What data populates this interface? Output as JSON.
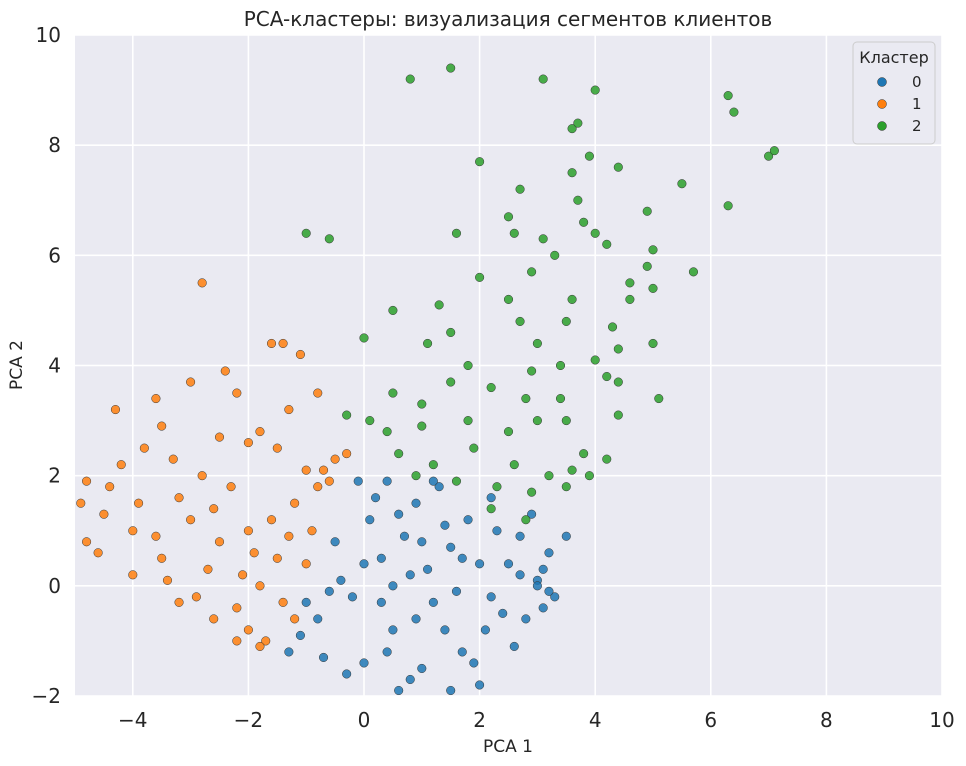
{
  "chart_data": {
    "type": "scatter",
    "title": "PCA-кластеры: визуализация сегментов клиентов",
    "xlabel": "PCA 1",
    "ylabel": "PCA 2",
    "xlim": [
      -5,
      10
    ],
    "ylim": [
      -2,
      10
    ],
    "xticks": [
      -4,
      -2,
      0,
      2,
      4,
      6,
      8,
      10
    ],
    "yticks": [
      -2,
      0,
      2,
      4,
      6,
      8,
      10
    ],
    "xtick_labels": [
      "−4",
      "−2",
      "0",
      "2",
      "4",
      "6",
      "8",
      "10"
    ],
    "ytick_labels": [
      "−2",
      "0",
      "2",
      "4",
      "6",
      "8",
      "10"
    ],
    "grid": true,
    "background": "#eaeaf2",
    "grid_color": "#ffffff",
    "legend": {
      "title": "Кластер",
      "position": "top-right",
      "entries": [
        "0",
        "1",
        "2"
      ]
    },
    "series": [
      {
        "name": "0",
        "color": "#1f77b4",
        "note": "dense cloud of several thousand points",
        "points": [
          [
            0.3,
            0.5
          ],
          [
            0.8,
            0.2
          ],
          [
            1.2,
            -0.3
          ],
          [
            0.5,
            -0.8
          ],
          [
            1.5,
            0.7
          ],
          [
            0.1,
            1.2
          ],
          [
            2.0,
            0.4
          ],
          [
            2.4,
            -0.5
          ],
          [
            0.9,
            1.5
          ],
          [
            -0.4,
            0.1
          ],
          [
            -0.8,
            -0.6
          ],
          [
            1.7,
            -1.2
          ],
          [
            2.7,
            0.9
          ],
          [
            3.0,
            0.1
          ],
          [
            1.0,
            -1.5
          ],
          [
            0.0,
            -1.4
          ],
          [
            -0.5,
            0.8
          ],
          [
            0.4,
            1.9
          ],
          [
            1.3,
            1.8
          ],
          [
            2.2,
            1.6
          ],
          [
            3.2,
            0.6
          ],
          [
            3.1,
            -0.4
          ],
          [
            2.6,
            -1.1
          ],
          [
            1.9,
            -1.4
          ],
          [
            0.6,
            -1.9
          ],
          [
            -1.1,
            -0.9
          ],
          [
            -1.3,
            -1.2
          ],
          [
            -0.2,
            -0.2
          ],
          [
            0.7,
            0.9
          ],
          [
            1.1,
            0.3
          ],
          [
            1.6,
            -0.1
          ],
          [
            2.1,
            -0.8
          ],
          [
            2.9,
            1.3
          ],
          [
            3.3,
            -0.2
          ],
          [
            0.2,
            1.6
          ],
          [
            -0.1,
            1.9
          ],
          [
            1.4,
            1.1
          ],
          [
            0.5,
            0.0
          ],
          [
            1.8,
            1.2
          ],
          [
            2.5,
            0.4
          ],
          [
            3.0,
            -0.0
          ],
          [
            3.2,
            -0.1
          ],
          [
            2.0,
            -1.8
          ],
          [
            1.5,
            -1.9
          ],
          [
            0.8,
            -1.7
          ],
          [
            -0.3,
            -1.6
          ],
          [
            -0.7,
            -1.3
          ],
          [
            -1.0,
            -0.3
          ],
          [
            3.5,
            0.9
          ],
          [
            3.1,
            0.3
          ],
          [
            2.8,
            -0.6
          ],
          [
            1.2,
            1.9
          ],
          [
            0.9,
            -0.6
          ],
          [
            0.3,
            -0.3
          ],
          [
            1.7,
            0.5
          ],
          [
            2.3,
            1.0
          ],
          [
            -0.6,
            -0.1
          ],
          [
            0.0,
            0.4
          ],
          [
            0.6,
            1.3
          ],
          [
            1.0,
            0.8
          ],
          [
            1.4,
            -0.8
          ],
          [
            2.2,
            -0.2
          ],
          [
            2.7,
            0.2
          ],
          [
            0.4,
            -1.2
          ]
        ]
      },
      {
        "name": "1",
        "color": "#ff7f0e",
        "note": "dense cloud of points",
        "points": [
          [
            -2.0,
            1.0
          ],
          [
            -1.5,
            0.5
          ],
          [
            -2.5,
            0.8
          ],
          [
            -3.0,
            1.2
          ],
          [
            -1.2,
            1.5
          ],
          [
            -0.8,
            1.8
          ],
          [
            -1.8,
            0.0
          ],
          [
            -2.2,
            -0.4
          ],
          [
            -3.5,
            0.5
          ],
          [
            -4.0,
            1.0
          ],
          [
            -4.5,
            1.3
          ],
          [
            -4.8,
            1.9
          ],
          [
            -3.2,
            1.6
          ],
          [
            -2.8,
            2.0
          ],
          [
            -1.0,
            2.1
          ],
          [
            -0.5,
            2.3
          ],
          [
            -1.4,
            -0.3
          ],
          [
            -2.0,
            -0.8
          ],
          [
            -1.7,
            -1.0
          ],
          [
            -1.2,
            -0.6
          ],
          [
            -3.8,
            2.5
          ],
          [
            -3.5,
            2.9
          ],
          [
            -2.4,
            3.9
          ],
          [
            -2.2,
            3.5
          ],
          [
            -1.6,
            4.4
          ],
          [
            -1.4,
            4.4
          ],
          [
            -1.1,
            4.2
          ],
          [
            -2.8,
            5.5
          ],
          [
            -3.6,
            3.4
          ],
          [
            -4.3,
            3.2
          ],
          [
            -3.0,
            3.7
          ],
          [
            -2.0,
            2.6
          ],
          [
            -0.8,
            3.5
          ],
          [
            -1.8,
            2.8
          ],
          [
            -4.0,
            0.2
          ],
          [
            -3.2,
            -0.3
          ],
          [
            -2.6,
            -0.6
          ],
          [
            -2.2,
            -1.0
          ],
          [
            -1.8,
            -1.1
          ],
          [
            -4.8,
            0.8
          ],
          [
            -4.9,
            1.5
          ],
          [
            -0.3,
            2.4
          ],
          [
            -0.7,
            2.1
          ],
          [
            -2.7,
            0.3
          ],
          [
            -3.9,
            1.5
          ],
          [
            -1.3,
            0.9
          ],
          [
            -2.3,
            1.8
          ],
          [
            -1.6,
            1.2
          ],
          [
            -0.6,
            1.9
          ],
          [
            -3.4,
            0.1
          ],
          [
            -2.9,
            -0.2
          ],
          [
            -1.9,
            0.6
          ],
          [
            -4.2,
            2.2
          ],
          [
            -3.3,
            2.3
          ],
          [
            -2.5,
            2.7
          ],
          [
            -1.3,
            3.2
          ],
          [
            -4.6,
            0.6
          ],
          [
            -1.0,
            0.4
          ],
          [
            -2.1,
            0.2
          ],
          [
            -3.6,
            0.9
          ],
          [
            -4.4,
            1.8
          ],
          [
            -1.5,
            2.5
          ],
          [
            -0.9,
            1.0
          ],
          [
            -2.6,
            1.4
          ]
        ]
      },
      {
        "name": "2",
        "color": "#2ca02c",
        "note": "sparser cloud of points",
        "points": [
          [
            0.8,
            9.2
          ],
          [
            1.5,
            9.4
          ],
          [
            3.1,
            9.2
          ],
          [
            4.0,
            9.0
          ],
          [
            6.3,
            8.9
          ],
          [
            6.4,
            8.6
          ],
          [
            7.0,
            7.8
          ],
          [
            7.1,
            7.9
          ],
          [
            3.6,
            8.3
          ],
          [
            3.7,
            8.4
          ],
          [
            3.9,
            7.8
          ],
          [
            2.0,
            7.7
          ],
          [
            4.4,
            7.6
          ],
          [
            3.6,
            7.5
          ],
          [
            5.5,
            7.3
          ],
          [
            2.7,
            7.2
          ],
          [
            3.7,
            7.0
          ],
          [
            6.3,
            6.9
          ],
          [
            4.9,
            6.8
          ],
          [
            3.8,
            6.6
          ],
          [
            2.5,
            6.7
          ],
          [
            1.6,
            6.4
          ],
          [
            -1.0,
            6.4
          ],
          [
            -0.6,
            6.3
          ],
          [
            2.6,
            6.4
          ],
          [
            3.1,
            6.3
          ],
          [
            4.0,
            6.4
          ],
          [
            4.2,
            6.2
          ],
          [
            5.0,
            6.1
          ],
          [
            3.3,
            6.0
          ],
          [
            5.7,
            5.7
          ],
          [
            4.6,
            5.5
          ],
          [
            4.9,
            5.8
          ],
          [
            2.9,
            5.7
          ],
          [
            3.6,
            5.2
          ],
          [
            5.0,
            5.4
          ],
          [
            2.0,
            5.6
          ],
          [
            2.5,
            5.2
          ],
          [
            0.5,
            5.0
          ],
          [
            1.3,
            5.1
          ],
          [
            4.6,
            5.2
          ],
          [
            2.7,
            4.8
          ],
          [
            3.5,
            4.8
          ],
          [
            4.3,
            4.7
          ],
          [
            1.5,
            4.6
          ],
          [
            3.0,
            4.4
          ],
          [
            4.4,
            4.3
          ],
          [
            1.1,
            4.4
          ],
          [
            5.0,
            4.4
          ],
          [
            0.0,
            4.5
          ],
          [
            1.8,
            4.0
          ],
          [
            3.4,
            4.0
          ],
          [
            4.0,
            4.1
          ],
          [
            2.9,
            3.9
          ],
          [
            4.2,
            3.8
          ],
          [
            4.4,
            3.7
          ],
          [
            5.1,
            3.4
          ],
          [
            0.1,
            3.0
          ],
          [
            0.5,
            3.5
          ],
          [
            1.0,
            3.3
          ],
          [
            1.5,
            3.7
          ],
          [
            2.2,
            3.6
          ],
          [
            2.8,
            3.4
          ],
          [
            3.4,
            3.4
          ],
          [
            4.4,
            3.1
          ],
          [
            -0.3,
            3.1
          ],
          [
            0.4,
            2.8
          ],
          [
            1.0,
            2.9
          ],
          [
            1.8,
            3.0
          ],
          [
            2.5,
            2.8
          ],
          [
            3.0,
            3.0
          ],
          [
            3.8,
            2.4
          ],
          [
            4.2,
            2.3
          ],
          [
            3.5,
            3.0
          ],
          [
            0.6,
            2.4
          ],
          [
            1.2,
            2.2
          ],
          [
            1.9,
            2.5
          ],
          [
            2.6,
            2.2
          ],
          [
            3.2,
            2.0
          ],
          [
            3.5,
            1.8
          ],
          [
            0.9,
            2.0
          ],
          [
            1.6,
            1.9
          ],
          [
            2.3,
            1.8
          ],
          [
            2.9,
            1.7
          ],
          [
            3.6,
            2.1
          ],
          [
            3.9,
            2.0
          ],
          [
            2.2,
            1.4
          ],
          [
            2.8,
            1.2
          ]
        ]
      }
    ]
  }
}
